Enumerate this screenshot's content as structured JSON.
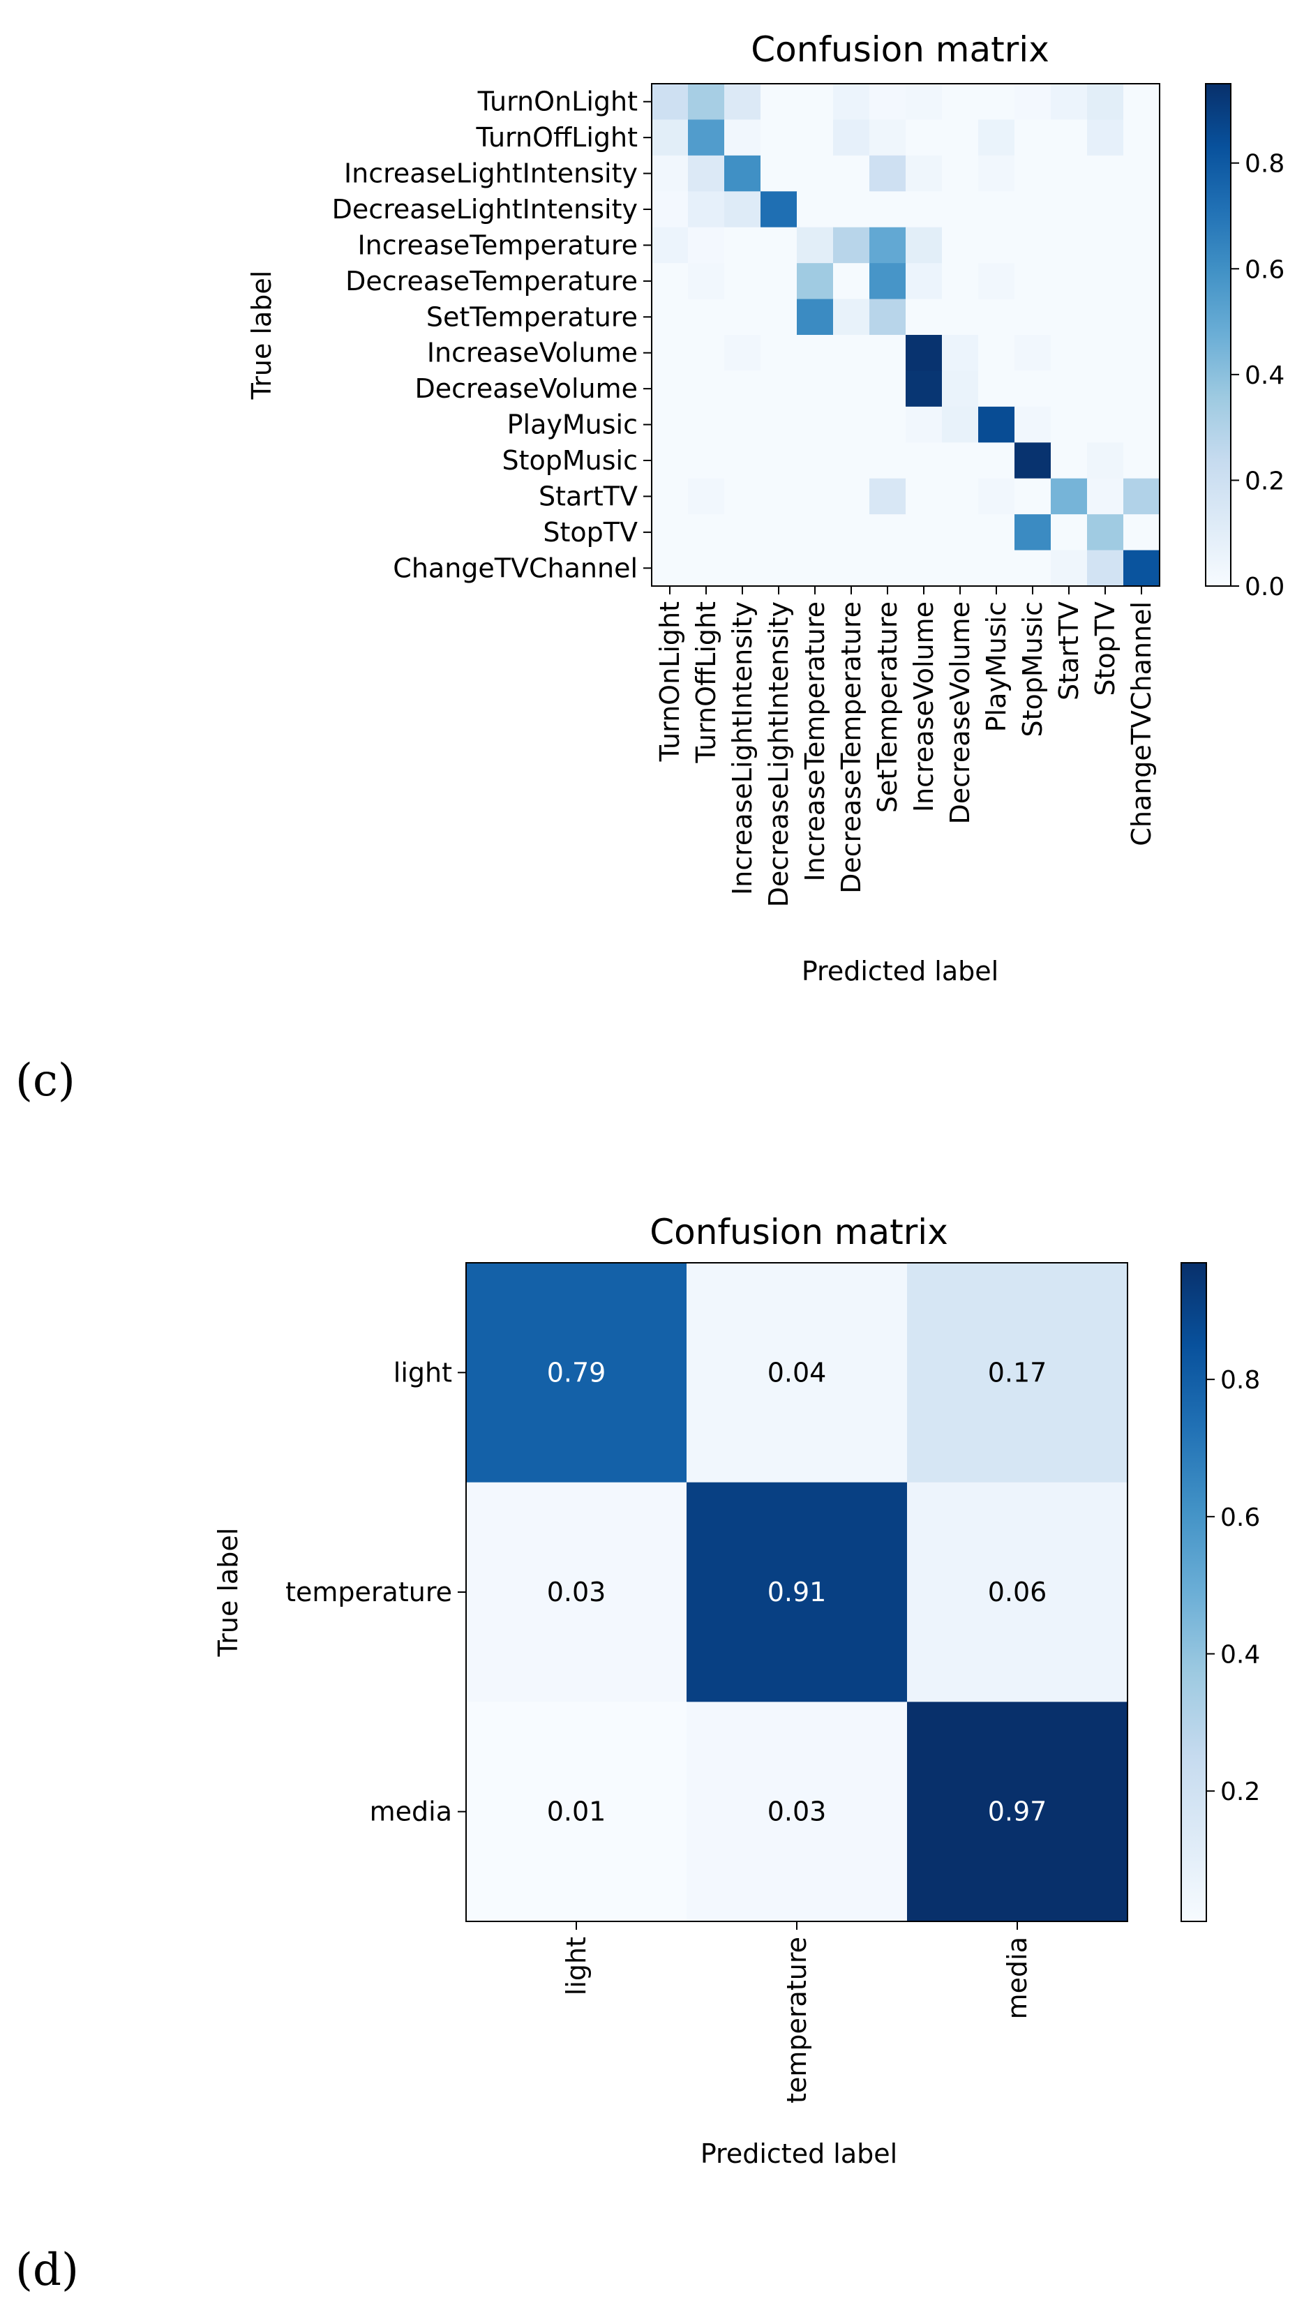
{
  "chart_data": [
    {
      "type": "heatmap",
      "panel_label": "(c)",
      "title": "Confusion matrix",
      "xlabel": "Predicted label",
      "ylabel": "True label",
      "x_categories": [
        "TurnOnLight",
        "TurnOffLight",
        "IncreaseLightIntensity",
        "DecreaseLightIntensity",
        "IncreaseTemperature",
        "DecreaseTemperature",
        "SetTemperature",
        "IncreaseVolume",
        "DecreaseVolume",
        "PlayMusic",
        "StopMusic",
        "StartTV",
        "StopTV",
        "ChangeTVChannel"
      ],
      "y_categories": [
        "TurnOnLight",
        "TurnOffLight",
        "IncreaseLightIntensity",
        "DecreaseLightIntensity",
        "IncreaseTemperature",
        "DecreaseTemperature",
        "SetTemperature",
        "IncreaseVolume",
        "DecreaseVolume",
        "PlayMusic",
        "StopMusic",
        "StartTV",
        "StopTV",
        "ChangeTVChannel"
      ],
      "values": [
        [
          0.2,
          0.33,
          0.13,
          0.01,
          0.01,
          0.05,
          0.02,
          0.03,
          0.01,
          0.01,
          0.02,
          0.05,
          0.1,
          0.01
        ],
        [
          0.1,
          0.55,
          0.03,
          0.01,
          0.01,
          0.08,
          0.04,
          0.01,
          0.01,
          0.06,
          0.01,
          0.01,
          0.08,
          0.01
        ],
        [
          0.03,
          0.13,
          0.6,
          0.01,
          0.01,
          0.01,
          0.2,
          0.04,
          0.01,
          0.03,
          0.01,
          0.01,
          0.01,
          0.01
        ],
        [
          0.02,
          0.08,
          0.12,
          0.72,
          0.01,
          0.01,
          0.01,
          0.01,
          0.01,
          0.01,
          0.01,
          0.01,
          0.01,
          0.01
        ],
        [
          0.05,
          0.02,
          0.01,
          0.01,
          0.1,
          0.28,
          0.5,
          0.1,
          0.01,
          0.01,
          0.01,
          0.01,
          0.01,
          0.01
        ],
        [
          0.01,
          0.03,
          0.01,
          0.01,
          0.35,
          0.01,
          0.58,
          0.05,
          0.01,
          0.03,
          0.01,
          0.01,
          0.01,
          0.01
        ],
        [
          0.01,
          0.01,
          0.01,
          0.01,
          0.62,
          0.07,
          0.28,
          0.01,
          0.01,
          0.01,
          0.01,
          0.01,
          0.01,
          0.01
        ],
        [
          0.01,
          0.01,
          0.03,
          0.01,
          0.01,
          0.01,
          0.01,
          0.94,
          0.05,
          0.01,
          0.03,
          0.01,
          0.01,
          0.01
        ],
        [
          0.01,
          0.01,
          0.01,
          0.01,
          0.01,
          0.01,
          0.01,
          0.93,
          0.06,
          0.01,
          0.01,
          0.01,
          0.01,
          0.01
        ],
        [
          0.01,
          0.01,
          0.01,
          0.01,
          0.01,
          0.01,
          0.01,
          0.03,
          0.07,
          0.85,
          0.03,
          0.01,
          0.01,
          0.01
        ],
        [
          0.01,
          0.01,
          0.01,
          0.01,
          0.01,
          0.01,
          0.01,
          0.01,
          0.01,
          0.01,
          0.94,
          0.01,
          0.04,
          0.01
        ],
        [
          0.01,
          0.03,
          0.01,
          0.01,
          0.01,
          0.01,
          0.15,
          0.01,
          0.01,
          0.03,
          0.01,
          0.45,
          0.03,
          0.3
        ],
        [
          0.01,
          0.01,
          0.01,
          0.01,
          0.01,
          0.01,
          0.01,
          0.01,
          0.01,
          0.01,
          0.62,
          0.01,
          0.35,
          0.01
        ],
        [
          0.01,
          0.01,
          0.01,
          0.01,
          0.01,
          0.01,
          0.01,
          0.01,
          0.01,
          0.01,
          0.01,
          0.04,
          0.18,
          0.82
        ]
      ],
      "colorbar": {
        "range": [
          0,
          0.95
        ],
        "ticks": [
          0.0,
          0.2,
          0.4,
          0.6,
          0.8
        ],
        "tick_labels": [
          "0.0",
          "0.2",
          "0.4",
          "0.6",
          "0.8"
        ]
      },
      "colormap": "Blues"
    },
    {
      "type": "heatmap",
      "panel_label": "(d)",
      "title": "Confusion matrix",
      "xlabel": "Predicted label",
      "ylabel": "True label",
      "x_categories": [
        "light",
        "temperature",
        "media"
      ],
      "y_categories": [
        "light",
        "temperature",
        "media"
      ],
      "values": [
        [
          0.79,
          0.04,
          0.17
        ],
        [
          0.03,
          0.91,
          0.06
        ],
        [
          0.01,
          0.03,
          0.97
        ]
      ],
      "cell_labels": [
        [
          "0.79",
          "0.04",
          "0.17"
        ],
        [
          "0.03",
          "0.91",
          "0.06"
        ],
        [
          "0.01",
          "0.03",
          "0.97"
        ]
      ],
      "colorbar": {
        "range": [
          0.01,
          0.97
        ],
        "ticks": [
          0.2,
          0.4,
          0.6,
          0.8
        ],
        "tick_labels": [
          "0.2",
          "0.4",
          "0.6",
          "0.8"
        ]
      },
      "colormap": "Blues"
    }
  ]
}
